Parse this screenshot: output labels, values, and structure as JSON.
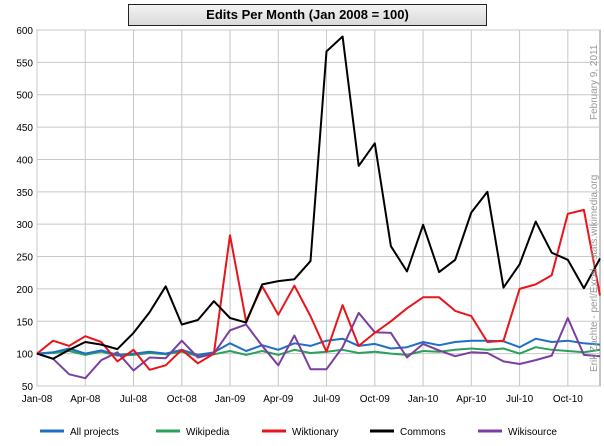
{
  "chart_data": {
    "type": "line",
    "title": "Edits Per Month  (Jan 2008 = 100)",
    "xlabel": "",
    "ylabel": "",
    "ylim": [
      50,
      600
    ],
    "yticks": [
      50,
      100,
      150,
      200,
      250,
      300,
      350,
      400,
      450,
      500,
      550,
      600
    ],
    "xtick_labels": [
      "Jan-08",
      "Apr-08",
      "Jul-08",
      "Oct-08",
      "Jan-09",
      "Apr-09",
      "Jul-09",
      "Oct-09",
      "Jan-10",
      "Apr-10",
      "Jul-10",
      "Oct-10"
    ],
    "x": [
      "Jan-08",
      "Feb-08",
      "Mar-08",
      "Apr-08",
      "May-08",
      "Jun-08",
      "Jul-08",
      "Aug-08",
      "Sep-08",
      "Oct-08",
      "Nov-08",
      "Dec-08",
      "Jan-09",
      "Feb-09",
      "Mar-09",
      "Apr-09",
      "May-09",
      "Jun-09",
      "Jul-09",
      "Aug-09",
      "Sep-09",
      "Oct-09",
      "Nov-09",
      "Dec-09",
      "Jan-10",
      "Feb-10",
      "Mar-10",
      "Apr-10",
      "May-10",
      "Jun-10",
      "Jul-10",
      "Aug-10",
      "Sep-10",
      "Oct-10",
      "Nov-10",
      "Dec-10"
    ],
    "grid": true,
    "legend": "bottom",
    "series": [
      {
        "name": "All projects",
        "color": "#1f6fc5",
        "values": [
          100,
          102,
          108,
          100,
          105,
          98,
          100,
          103,
          100,
          106,
          98,
          102,
          116,
          104,
          113,
          106,
          116,
          112,
          120,
          123,
          112,
          115,
          108,
          110,
          118,
          113,
          118,
          120,
          120,
          119,
          110,
          123,
          118,
          120,
          116,
          114
        ]
      },
      {
        "name": "Wikipedia",
        "color": "#2ca05a",
        "values": [
          100,
          101,
          104,
          98,
          103,
          97,
          98,
          101,
          99,
          103,
          96,
          99,
          104,
          98,
          104,
          98,
          106,
          101,
          103,
          106,
          101,
          103,
          100,
          98,
          104,
          103,
          106,
          108,
          106,
          108,
          100,
          110,
          106,
          104,
          102,
          106
        ]
      },
      {
        "name": "Wiktionary",
        "color": "#e8151b",
        "values": [
          100,
          120,
          112,
          127,
          118,
          88,
          106,
          75,
          82,
          106,
          85,
          100,
          283,
          150,
          204,
          160,
          205,
          158,
          103,
          175,
          112,
          132,
          150,
          170,
          187,
          187,
          166,
          158,
          118,
          120,
          200,
          207,
          221,
          316,
          322,
          190
        ]
      },
      {
        "name": "Commons",
        "color": "#000000",
        "values": [
          100,
          92,
          106,
          118,
          114,
          107,
          132,
          164,
          204,
          145,
          152,
          181,
          155,
          148,
          207,
          212,
          215,
          243,
          567,
          590,
          390,
          425,
          266,
          227,
          299,
          226,
          245,
          318,
          350,
          202,
          238,
          304,
          256,
          245,
          201,
          247
        ]
      },
      {
        "name": "Wikisource",
        "color": "#7b3fa0",
        "values": [
          100,
          92,
          68,
          62,
          90,
          102,
          74,
          94,
          93,
          120,
          94,
          100,
          136,
          145,
          112,
          82,
          128,
          76,
          76,
          110,
          163,
          133,
          132,
          94,
          115,
          105,
          96,
          102,
          101,
          88,
          84,
          90,
          97,
          155,
          98,
          96
        ]
      }
    ]
  },
  "side_text": {
    "date": "February 9, 2011",
    "credit": "Erik Zachte  -  perl/Excel  -  stats.wikimedia.org"
  }
}
